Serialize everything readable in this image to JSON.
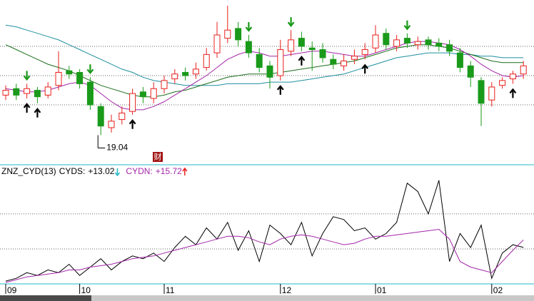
{
  "chart_data": [
    {
      "type": "candlestick",
      "open": [
        21.5,
        21.9,
        21.6,
        21.8,
        21.5,
        22.1,
        23.0,
        22.9,
        22.3,
        20.8,
        19.5,
        20.0,
        20.5,
        21.7,
        21.3,
        21.9,
        22.5,
        22.9,
        22.8,
        23.2,
        24.1,
        25.0,
        25.6,
        24.8,
        24.0,
        23.3,
        22.7,
        24.2,
        25.0,
        24.4,
        24.3,
        23.7,
        23.3,
        23.7,
        24.0,
        24.4,
        25.3,
        24.5,
        25.0,
        24.6,
        24.9,
        24.7,
        24.6,
        24.1,
        23.3,
        22.4,
        21.2,
        22.1,
        22.5,
        22.8
      ],
      "high": [
        22.1,
        22.2,
        22.2,
        22.0,
        22.3,
        24.2,
        23.3,
        23.1,
        22.6,
        21.0,
        20.3,
        20.8,
        21.9,
        22.0,
        22.3,
        22.7,
        23.1,
        23.2,
        23.5,
        24.4,
        26.0,
        27.0,
        26.0,
        25.2,
        24.4,
        23.6,
        24.9,
        25.5,
        25.4,
        24.8,
        24.7,
        24.0,
        24.0,
        24.3,
        24.7,
        25.8,
        25.6,
        25.2,
        25.3,
        25.1,
        25.1,
        25.0,
        24.9,
        24.4,
        23.6,
        22.6,
        22.3,
        22.6,
        23.0,
        23.6
      ],
      "low": [
        21.2,
        21.2,
        21.3,
        21.0,
        21.3,
        21.8,
        22.5,
        21.9,
        20.6,
        19.04,
        19.2,
        19.7,
        20.3,
        21.0,
        21.0,
        21.6,
        22.2,
        22.4,
        22.5,
        23.0,
        23.8,
        24.7,
        24.5,
        23.8,
        22.9,
        21.9,
        22.4,
        23.9,
        24.2,
        23.0,
        23.5,
        23.1,
        23.0,
        23.4,
        23.7,
        24.1,
        24.3,
        24.2,
        24.4,
        24.3,
        24.3,
        24.2,
        23.9,
        22.9,
        22.0,
        19.6,
        20.8,
        21.9,
        22.2,
        22.5
      ],
      "close": [
        21.8,
        21.5,
        21.9,
        21.4,
        22.0,
        22.9,
        22.8,
        22.2,
        20.9,
        19.6,
        19.9,
        20.4,
        21.6,
        21.4,
        21.9,
        22.4,
        22.8,
        22.7,
        23.1,
        24.0,
        25.2,
        25.5,
        24.9,
        24.1,
        23.2,
        22.6,
        24.3,
        24.9,
        24.5,
        24.3,
        23.8,
        23.4,
        23.6,
        23.9,
        24.3,
        25.2,
        24.6,
        24.9,
        24.7,
        24.8,
        24.6,
        24.5,
        24.2,
        23.2,
        22.6,
        21.0,
        22.0,
        22.4,
        22.8,
        23.3
      ],
      "up_color": "#e8201c",
      "down_color": "#1a9a1a",
      "series": [
        {
          "color": "#1f8fa0",
          "values": [
            25.8,
            25.7,
            25.5,
            25.3,
            25.1,
            24.9,
            24.6,
            24.3,
            24.0,
            23.7,
            23.4,
            23.1,
            22.9,
            22.6,
            22.4,
            22.3,
            22.2,
            22.1,
            22.1,
            22.1,
            22.1,
            22.2,
            22.2,
            22.2,
            22.2,
            22.3,
            22.3,
            22.3,
            22.4,
            22.5,
            22.6,
            22.7,
            22.8,
            23.0,
            23.2,
            23.4,
            23.6,
            23.8,
            23.9,
            24.0,
            24.1,
            24.1,
            24.1,
            24.0,
            24.0,
            23.9,
            23.9,
            23.8,
            23.8,
            23.8
          ]
        },
        {
          "color": "#1c6e1c",
          "values": [
            24.6,
            24.3,
            24.0,
            23.7,
            23.4,
            23.2,
            23.0,
            22.7,
            22.4,
            22.1,
            21.9,
            21.7,
            21.5,
            21.4,
            21.4,
            21.5,
            21.7,
            21.8,
            22.0,
            22.2,
            22.4,
            22.6,
            22.7,
            22.8,
            22.8,
            22.8,
            22.9,
            23.0,
            23.1,
            23.2,
            23.3,
            23.4,
            23.5,
            23.6,
            23.8,
            24.0,
            24.2,
            24.4,
            24.5,
            24.6,
            24.6,
            24.5,
            24.4,
            24.2,
            24.0,
            23.8,
            23.6,
            23.5,
            23.5,
            23.5
          ]
        },
        {
          "color": "#a326a8",
          "values": [
            21.9,
            21.8,
            21.7,
            21.7,
            21.8,
            22.0,
            22.2,
            22.3,
            22.1,
            21.6,
            21.1,
            20.7,
            20.6,
            20.6,
            20.8,
            21.1,
            21.5,
            21.9,
            22.3,
            22.7,
            23.2,
            23.7,
            24.0,
            24.2,
            24.1,
            23.9,
            23.9,
            24.0,
            24.1,
            24.2,
            24.2,
            24.1,
            24.0,
            23.9,
            23.9,
            24.1,
            24.3,
            24.5,
            24.7,
            24.8,
            24.8,
            24.7,
            24.6,
            24.3,
            23.9,
            23.4,
            23.0,
            22.7,
            22.6,
            22.7
          ]
        }
      ],
      "up_signals": [
        2,
        3,
        12,
        26,
        28,
        34,
        48
      ],
      "down_signals": [
        2,
        8,
        23,
        27,
        38
      ],
      "annotation_low_index": 9,
      "event_icon": "财",
      "ylim": [
        17.35,
        27.35
      ],
      "yticks": [
        24.5,
        22.7,
        20.9
      ],
      "grid": "dotted"
    },
    {
      "type": "line",
      "indicator": "ZNZ_CYD(13)",
      "series": [
        {
          "name": "CYDS:",
          "color": "#000000",
          "value_label": "+13.02",
          "trend": "down",
          "values": [
            1,
            2,
            4,
            3,
            5,
            4,
            7,
            3,
            6,
            9,
            5,
            8,
            10,
            9,
            11,
            8,
            13,
            17,
            14,
            20,
            16,
            22,
            12,
            19,
            8,
            21,
            18,
            14,
            22,
            10,
            18,
            24,
            23,
            19,
            20,
            16,
            18,
            22,
            36,
            33,
            25,
            37,
            8,
            18,
            13,
            21,
            2,
            11,
            14,
            13.02
          ]
        },
        {
          "name": "CYDN:",
          "color": "#a326a8",
          "value_label": "+15.72",
          "trend": "up",
          "values": [
            0.5,
            1.5,
            2.5,
            3,
            3.5,
            4,
            5,
            5,
            6,
            6.5,
            7,
            8,
            9,
            9.5,
            10,
            11,
            12,
            13,
            14,
            15,
            16,
            17,
            17,
            16.5,
            15,
            14,
            16,
            17,
            17.5,
            17,
            16,
            15,
            14,
            14.5,
            16,
            17,
            17,
            17.5,
            18,
            18.5,
            19,
            19.5,
            16,
            8,
            6,
            5,
            4,
            8,
            12,
            15.72
          ]
        }
      ],
      "ylim": [
        0,
        39
      ],
      "yticks": [
        12.5,
        25
      ],
      "grid": "dotted",
      "xticks": [
        {
          "value": 0,
          "label": "09"
        },
        {
          "value": 7,
          "label": "10"
        },
        {
          "value": 15,
          "label": "11"
        },
        {
          "value": 26,
          "label": "12"
        },
        {
          "value": 35,
          "label": "01"
        },
        {
          "value": 46,
          "label": "02"
        }
      ]
    }
  ]
}
